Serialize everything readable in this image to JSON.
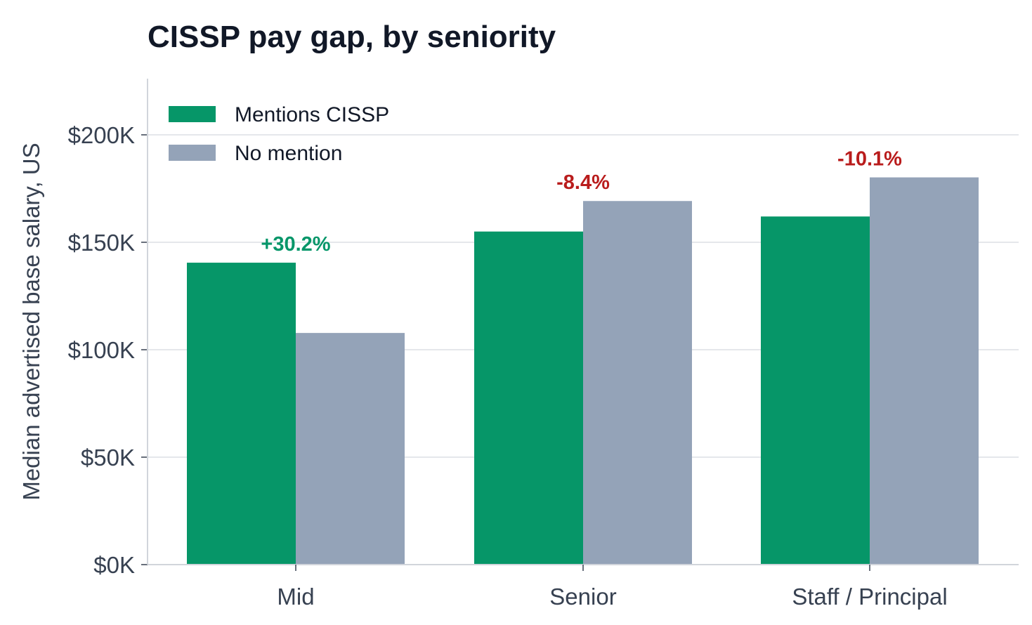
{
  "chart_data": {
    "type": "bar",
    "title": "CISSP pay gap, by seniority",
    "xlabel": "",
    "ylabel": "Median advertised base salary, US",
    "categories": [
      "Mid",
      "Senior",
      "Staff / Principal"
    ],
    "series": [
      {
        "name": "Mentions CISSP",
        "color": "#069668",
        "values": [
          140500,
          155000,
          162000
        ]
      },
      {
        "name": "No mention",
        "color": "#94a3b8",
        "values": [
          107800,
          169200,
          180200
        ]
      }
    ],
    "gap_labels": [
      {
        "text": "+30.2%",
        "color": "#059669"
      },
      {
        "text": "-8.4%",
        "color": "#b91c1c"
      },
      {
        "text": "-10.1%",
        "color": "#b91c1c"
      }
    ],
    "ylim": [
      0,
      200000
    ],
    "yticks": [
      0,
      50000,
      100000,
      150000,
      200000
    ],
    "ytick_labels": [
      "$0K",
      "$50K",
      "$100K",
      "$150K",
      "$200K"
    ],
    "grid": true,
    "legend_position": "top-left",
    "colors": {
      "grid": "#e5e7eb",
      "axis": "#d1d5db",
      "text": "#374151"
    }
  }
}
